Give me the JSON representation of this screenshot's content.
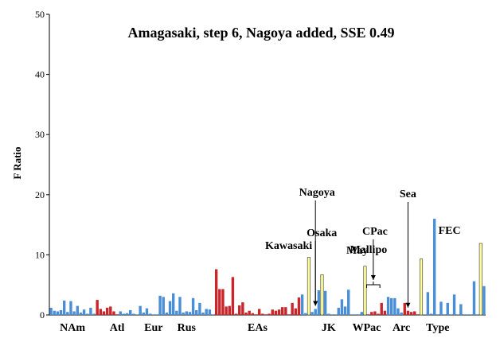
{
  "colors": {
    "blue": "#4a8fd6",
    "red": "#c8262b",
    "yellow": "#ffff99",
    "edge": "#333333"
  },
  "chart_data": {
    "type": "bar",
    "title": "Amagasaki, step 6, Nagoya added, SSE 0.49",
    "ylabel": "F Ratio",
    "xlabel": "",
    "ylim": [
      0,
      50
    ],
    "yticks": [
      0,
      10,
      20,
      30,
      40,
      50
    ],
    "grid": false,
    "legend": "none",
    "groups": [
      {
        "label": "NAm",
        "start": 0,
        "end": 14
      },
      {
        "label": "Atl",
        "start": 14,
        "end": 27
      },
      {
        "label": "Eur",
        "start": 27,
        "end": 36
      },
      {
        "label": "Rus",
        "start": 36,
        "end": 47
      },
      {
        "label": "EAs",
        "start": 47,
        "end": 79
      },
      {
        "label": "JK",
        "start": 79,
        "end": 90
      },
      {
        "label": "WPac",
        "start": 90,
        "end": 102
      },
      {
        "label": "Arc",
        "start": 102,
        "end": 111
      },
      {
        "label": "Type",
        "start": 111,
        "end": 124
      }
    ],
    "bars": [
      {
        "v": 1.2,
        "c": "blue"
      },
      {
        "v": 0.7,
        "c": "blue"
      },
      {
        "v": 0.6,
        "c": "blue"
      },
      {
        "v": 0.8,
        "c": "blue"
      },
      {
        "v": 2.4,
        "c": "blue"
      },
      {
        "v": 0.5,
        "c": "blue"
      },
      {
        "v": 2.3,
        "c": "blue"
      },
      {
        "v": 0.6,
        "c": "blue"
      },
      {
        "v": 1.5,
        "c": "blue"
      },
      {
        "v": 0.4,
        "c": "blue"
      },
      {
        "v": 0.9,
        "c": "blue"
      },
      {
        "v": 0.2,
        "c": "blue"
      },
      {
        "v": 1.2,
        "c": "blue"
      },
      {
        "v": 0.2,
        "c": "blue"
      },
      {
        "v": 2.5,
        "c": "red"
      },
      {
        "v": 1.0,
        "c": "red"
      },
      {
        "v": 0.6,
        "c": "red"
      },
      {
        "v": 1.2,
        "c": "red"
      },
      {
        "v": 1.4,
        "c": "red"
      },
      {
        "v": 0.6,
        "c": "red"
      },
      {
        "v": 0.1,
        "c": "red"
      },
      {
        "v": 0.6,
        "c": "blue"
      },
      {
        "v": 0.2,
        "c": "blue"
      },
      {
        "v": 0.3,
        "c": "blue"
      },
      {
        "v": 0.8,
        "c": "blue"
      },
      {
        "v": 0.2,
        "c": "blue"
      },
      {
        "v": 0.1,
        "c": "blue"
      },
      {
        "v": 1.5,
        "c": "blue"
      },
      {
        "v": 0.4,
        "c": "blue"
      },
      {
        "v": 1.1,
        "c": "blue"
      },
      {
        "v": 0.2,
        "c": "blue"
      },
      {
        "v": 0.1,
        "c": "blue"
      },
      {
        "v": 0.1,
        "c": "blue"
      },
      {
        "v": 3.2,
        "c": "blue"
      },
      {
        "v": 3.0,
        "c": "blue"
      },
      {
        "v": 0.4,
        "c": "blue"
      },
      {
        "v": 2.3,
        "c": "blue"
      },
      {
        "v": 3.6,
        "c": "blue"
      },
      {
        "v": 0.7,
        "c": "blue"
      },
      {
        "v": 3.0,
        "c": "blue"
      },
      {
        "v": 0.4,
        "c": "blue"
      },
      {
        "v": 0.6,
        "c": "blue"
      },
      {
        "v": 0.5,
        "c": "blue"
      },
      {
        "v": 2.8,
        "c": "blue"
      },
      {
        "v": 0.8,
        "c": "blue"
      },
      {
        "v": 2.0,
        "c": "blue"
      },
      {
        "v": 0.4,
        "c": "blue"
      },
      {
        "v": 1.0,
        "c": "blue"
      },
      {
        "v": 0.9,
        "c": "blue"
      },
      {
        "v": 0.1,
        "c": "blue"
      },
      {
        "v": 7.6,
        "c": "red"
      },
      {
        "v": 4.3,
        "c": "red"
      },
      {
        "v": 4.3,
        "c": "red"
      },
      {
        "v": 1.4,
        "c": "red"
      },
      {
        "v": 1.5,
        "c": "red"
      },
      {
        "v": 6.3,
        "c": "red"
      },
      {
        "v": 0.2,
        "c": "red"
      },
      {
        "v": 1.6,
        "c": "red"
      },
      {
        "v": 2.1,
        "c": "red"
      },
      {
        "v": 0.4,
        "c": "red"
      },
      {
        "v": 0.7,
        "c": "red"
      },
      {
        "v": 0.3,
        "c": "red"
      },
      {
        "v": 0.1,
        "c": "red"
      },
      {
        "v": 1.0,
        "c": "red"
      },
      {
        "v": 0.2,
        "c": "red"
      },
      {
        "v": 0.1,
        "c": "red"
      },
      {
        "v": 0.2,
        "c": "red"
      },
      {
        "v": 0.9,
        "c": "red"
      },
      {
        "v": 0.7,
        "c": "red"
      },
      {
        "v": 0.9,
        "c": "red"
      },
      {
        "v": 1.3,
        "c": "red"
      },
      {
        "v": 1.3,
        "c": "red"
      },
      {
        "v": 0.1,
        "c": "red"
      },
      {
        "v": 2.0,
        "c": "red"
      },
      {
        "v": 1.1,
        "c": "red"
      },
      {
        "v": 2.9,
        "c": "red"
      },
      {
        "v": 3.4,
        "c": "blue"
      },
      {
        "v": 0.3,
        "c": "blue"
      },
      {
        "v": 9.6,
        "c": "yellow"
      },
      {
        "v": 0.5,
        "c": "blue"
      },
      {
        "v": 1.0,
        "c": "blue"
      },
      {
        "v": 4.1,
        "c": "blue"
      },
      {
        "v": 6.7,
        "c": "yellow"
      },
      {
        "v": 4.0,
        "c": "blue"
      },
      {
        "v": 0.2,
        "c": "blue"
      },
      {
        "v": 0.1,
        "c": "blue"
      },
      {
        "v": 0.1,
        "c": "blue"
      },
      {
        "v": 1.2,
        "c": "blue"
      },
      {
        "v": 2.6,
        "c": "blue"
      },
      {
        "v": 1.4,
        "c": "blue"
      },
      {
        "v": 4.2,
        "c": "blue"
      },
      {
        "v": 0.1,
        "c": "blue"
      },
      {
        "v": 0.1,
        "c": "blue"
      },
      {
        "v": 0.1,
        "c": "blue"
      },
      {
        "v": 0.5,
        "c": "blue"
      },
      {
        "v": 8.1,
        "c": "yellow"
      },
      {
        "v": 0.1,
        "c": "red"
      },
      {
        "v": 0.5,
        "c": "red"
      },
      {
        "v": 0.6,
        "c": "red"
      },
      {
        "v": 0.2,
        "c": "red"
      },
      {
        "v": 2.0,
        "c": "red"
      },
      {
        "v": 0.7,
        "c": "red"
      },
      {
        "v": 3.0,
        "c": "blue"
      },
      {
        "v": 2.8,
        "c": "blue"
      },
      {
        "v": 2.8,
        "c": "blue"
      },
      {
        "v": 1.1,
        "c": "blue"
      },
      {
        "v": 0.4,
        "c": "blue"
      },
      {
        "v": 2.0,
        "c": "red"
      },
      {
        "v": 0.7,
        "c": "red"
      },
      {
        "v": 0.5,
        "c": "red"
      },
      {
        "v": 0.6,
        "c": "red"
      },
      {
        "v": 0.1,
        "c": "red"
      },
      {
        "v": 9.3,
        "c": "yellow"
      },
      {
        "v": 0.1,
        "c": "blue"
      },
      {
        "v": 3.8,
        "c": "blue"
      },
      {
        "v": 0.2,
        "c": "blue"
      },
      {
        "v": 16.0,
        "c": "blue"
      },
      {
        "v": 0.1,
        "c": "blue"
      },
      {
        "v": 2.2,
        "c": "blue"
      },
      {
        "v": 0.1,
        "c": "blue"
      },
      {
        "v": 2.0,
        "c": "blue"
      },
      {
        "v": 0.1,
        "c": "blue"
      },
      {
        "v": 3.4,
        "c": "blue"
      },
      {
        "v": 0.1,
        "c": "blue"
      },
      {
        "v": 1.8,
        "c": "blue"
      },
      {
        "v": 0.1,
        "c": "blue"
      },
      {
        "v": 0.1,
        "c": "blue"
      },
      {
        "v": 0.1,
        "c": "blue"
      },
      {
        "v": 5.6,
        "c": "blue"
      },
      {
        "v": 0.1,
        "c": "blue"
      },
      {
        "v": 11.9,
        "c": "yellow"
      },
      {
        "v": 4.8,
        "c": "blue"
      }
    ],
    "annotations": [
      {
        "text": "Kawasaki",
        "bar": 76,
        "arrow": false
      },
      {
        "text": "Nagoya",
        "bar": 80,
        "arrow": true
      },
      {
        "text": "Osaka",
        "bar": 80,
        "arrow": true
      },
      {
        "text": "Mallipo",
        "bar": 91,
        "arrow": false
      },
      {
        "text": "May",
        "bar": 96,
        "arrow": false
      },
      {
        "text": "CPac",
        "bar": 98,
        "arrow": false,
        "bracket": [
          96,
          100
        ]
      },
      {
        "text": "Sea",
        "bar": 108,
        "arrow": true
      },
      {
        "text": "FEC",
        "bar": 122,
        "arrow": false
      }
    ]
  }
}
